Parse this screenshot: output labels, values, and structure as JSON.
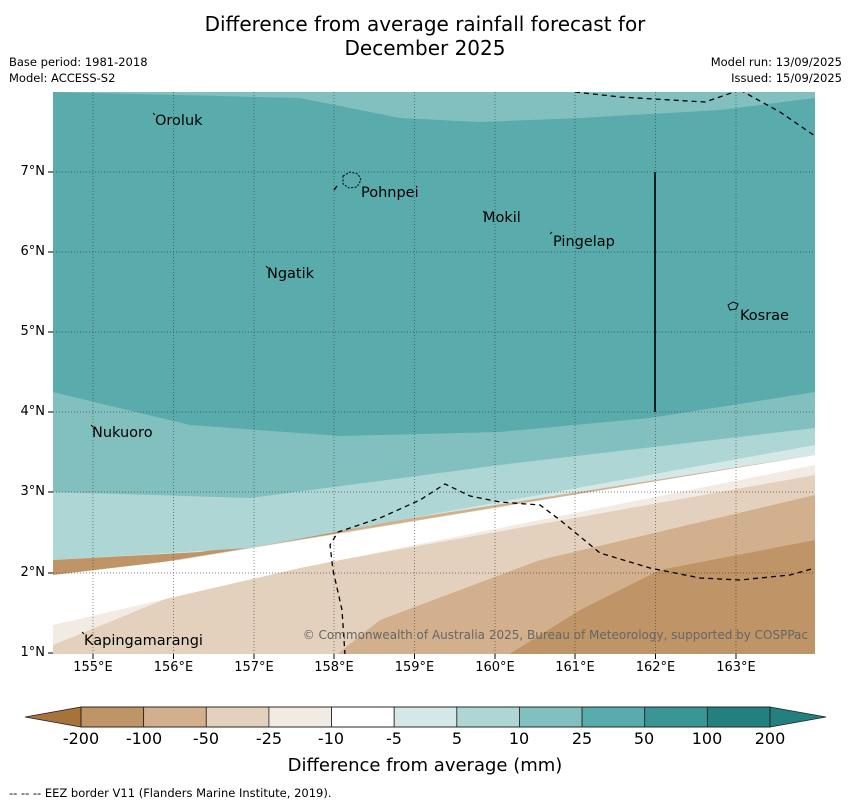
{
  "title": [
    "Difference from average rainfall forecast for",
    "December 2025"
  ],
  "meta_left": [
    "Base period: 1981-2018",
    "Model: ACCESS-S2"
  ],
  "meta_right": [
    "Model run: 13/09/2025",
    "Issued: 15/09/2025"
  ],
  "places": [
    "Oroluk",
    "Pohnpei",
    "Mokil",
    "Pingelap",
    "Ngatik",
    "Kosrae",
    "Nukuoro",
    "Kapingamarangi"
  ],
  "latitude_labels": [
    "7°N",
    "6°N",
    "5°N",
    "4°N",
    "3°N",
    "2°N",
    "1°N"
  ],
  "longitude_labels": [
    "155°E",
    "156°E",
    "157°E",
    "158°E",
    "159°E",
    "160°E",
    "161°E",
    "162°E",
    "163°E"
  ],
  "colorbar": {
    "labels": [
      "-200",
      "-100",
      "-50",
      "-25",
      "-10",
      "-5",
      "5",
      "10",
      "25",
      "50",
      "100",
      "200"
    ],
    "colors": [
      "#a8733a",
      "#bf9466",
      "#d2b08d",
      "#e3d1bd",
      "#f1ebe3",
      "#ffffff",
      "#d3e8e7",
      "#aed6d5",
      "#82c0bf",
      "#5aabab",
      "#3a9695",
      "#24807f"
    ],
    "title": "Difference from average (mm)"
  },
  "credit": "© Commonwealth of Australia 2025, Bureau of Meteorology, supported by COSPPac",
  "footnote": "--  --  -- EEZ border V11 (Flanders Marine Institute, 2019)."
}
